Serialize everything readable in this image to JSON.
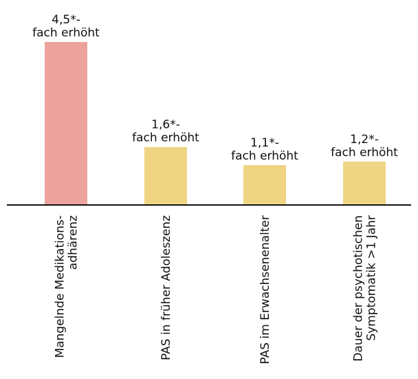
{
  "chart_data": {
    "type": "bar",
    "categories": [
      [
        "Mangelnde Medikations-",
        "adhärenz"
      ],
      [
        "PAS in früher Adoleszenz"
      ],
      [
        "PAS im Erwachsenenalter"
      ],
      [
        "Dauer der psychotischen",
        "Symptomatik >1 Jahr"
      ]
    ],
    "values": [
      4.5,
      1.6,
      1.1,
      1.2
    ],
    "data_labels": [
      [
        "4,5*-",
        "fach erhöht"
      ],
      [
        "1,6*-",
        "fach erhöht"
      ],
      [
        "1,1*-",
        "fach erhöht"
      ],
      [
        "1,2*-",
        "fach erhöht"
      ]
    ],
    "colors": [
      "#eda39c",
      "#efd484",
      "#efd484",
      "#efd484"
    ],
    "axis_color": "#111111",
    "ylim": [
      0,
      4.5
    ],
    "grid": false,
    "legend": "none"
  }
}
